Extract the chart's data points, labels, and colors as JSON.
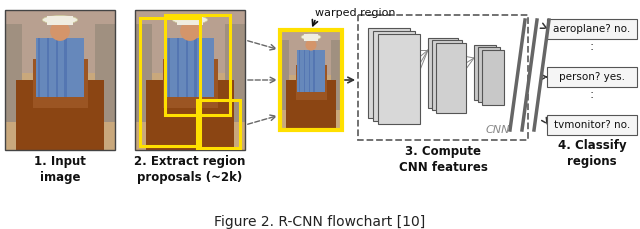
{
  "figure_caption": "Figure 2. R-CNN flowchart [10]",
  "caption_fontsize": 10,
  "fig_width": 6.4,
  "fig_height": 2.29,
  "background_color": "#ffffff",
  "step_labels": [
    "1. Input\nimage",
    "2. Extract region\nproposals (~2k)",
    "3. Compute\nCNN features",
    "4. Classify\nregions"
  ],
  "step_label_fontsize": 8.5,
  "step_label_fontweight": "bold",
  "warped_region_label": "warped region",
  "cnn_label": "CNN",
  "output_labels": [
    "aeroplane? no.",
    "person? yes.",
    "tvmonitor? no."
  ],
  "output_fontsize": 7.5,
  "yellow_color": "#FFE000",
  "dashed_box_color": "#666666",
  "cnn_block_colors": [
    "#e8e8e8",
    "#d8d8d8",
    "#c8c8c8",
    "#b8b8b8"
  ],
  "output_box_color": "#f5f5f5",
  "output_box_edge": "#555555"
}
